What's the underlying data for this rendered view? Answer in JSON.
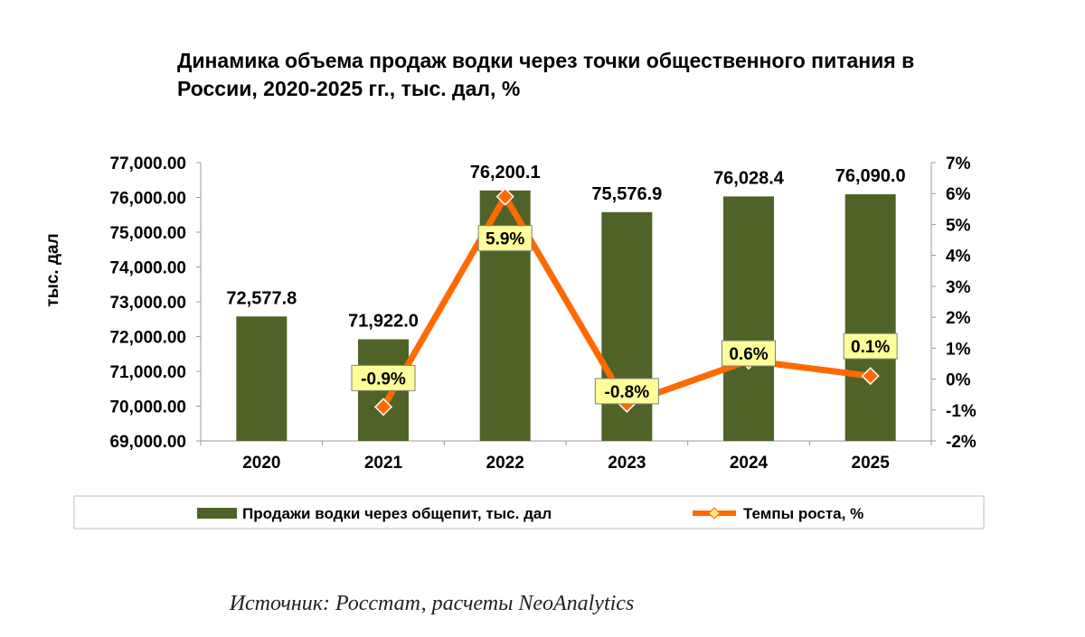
{
  "title": "Динамика объема продаж водки через точки общественного питания в России, 2020-2025 гг., тыс. дал, %",
  "source": "Источник: Росстат, расчеты NeoAnalytics",
  "colors": {
    "bar": "#4f6228",
    "line": "#ff6a00",
    "marker": "#ff6a00",
    "label_bg": "#ffff99"
  },
  "chart_data": {
    "type": "bar",
    "categories": [
      "2020",
      "2021",
      "2022",
      "2023",
      "2024",
      "2025"
    ],
    "ylabel": "тыс. дал",
    "ylim": [
      69000,
      77000
    ],
    "yticks": [
      "77,000.00",
      "76,000.00",
      "75,000.00",
      "74,000.00",
      "73,000.00",
      "72,000.00",
      "71,000.00",
      "70,000.00",
      "69,000.00"
    ],
    "y2lim": [
      -2,
      7
    ],
    "y2ticks": [
      "7%",
      "6%",
      "5%",
      "4%",
      "3%",
      "2%",
      "1%",
      "0%",
      "-1%",
      "-2%"
    ],
    "legend_position": "bottom",
    "series": [
      {
        "name": "Продажи водки через общепит, тыс. дал",
        "type": "bar",
        "axis": "left",
        "values": [
          72577.8,
          71922.0,
          76200.1,
          75576.9,
          76028.4,
          76090.0
        ],
        "labels": [
          "72,577.8",
          "71,922.0",
          "76,200.1",
          "75,576.9",
          "76,028.4",
          "76,090.0"
        ]
      },
      {
        "name": "Темпы роста, %",
        "type": "line",
        "axis": "right",
        "values": [
          null,
          -0.9,
          5.9,
          -0.8,
          0.6,
          0.1
        ],
        "labels": [
          "",
          "-0.9%",
          "5.9%",
          "-0.8%",
          "0.6%",
          "0.1%"
        ]
      }
    ]
  }
}
